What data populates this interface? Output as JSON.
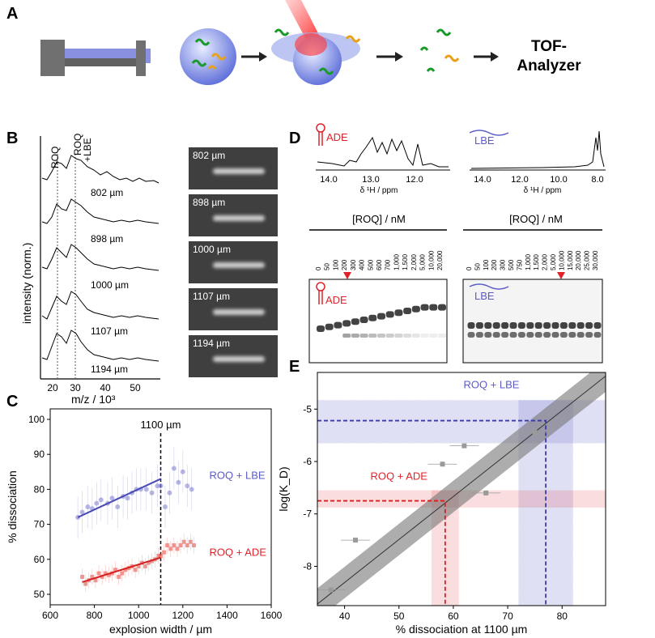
{
  "panels": {
    "a": "A",
    "b": "B",
    "c": "C",
    "d": "D",
    "e": "E"
  },
  "panel_a": {
    "analyzer_label_line1": "TOF-",
    "analyzer_label_line2": "Analyzer"
  },
  "panel_b": {
    "peak_labels": [
      "ROQ",
      "ROQ",
      "+LBE"
    ],
    "trace_labels": [
      "802 µm",
      "898 µm",
      "1000 µm",
      "1107 µm",
      "1194 µm"
    ],
    "ylabel": "intensity (norm.)",
    "xlabel": "m/z / 10³",
    "xticks": [
      "20",
      "30",
      "40",
      "50"
    ],
    "thumb_labels": [
      "802 µm",
      "898 µm",
      "1000 µm",
      "1107 µm",
      "1194 µm"
    ]
  },
  "panel_d": {
    "nmr_left_label": "ADE",
    "nmr_right_label": "LBE",
    "nmr_left_ticks": [
      "14.0",
      "13.0",
      "12.0"
    ],
    "nmr_right_ticks": [
      "14.0",
      "12.0",
      "10.0",
      "8.0"
    ],
    "nmr_xlabel_left": "δ ¹H / ppm",
    "nmr_xlabel_right": "δ ¹H / ppm",
    "gel_title_left": "[ROQ] / nM",
    "gel_title_right": "[ROQ] / nM",
    "gel_left_conc": [
      "0",
      "50",
      "100",
      "200",
      "300",
      "400",
      "500",
      "600",
      "700",
      "1,000",
      "1,500",
      "2,000",
      "5,000",
      "10,000",
      "20,000"
    ],
    "gel_right_conc": [
      "0",
      "50",
      "100",
      "200",
      "300",
      "500",
      "750",
      "1,000",
      "1,500",
      "2,000",
      "5,000",
      "10,000",
      "15,000",
      "20,000",
      "25,000",
      "30,000"
    ],
    "gel_left_label": "ADE",
    "gel_right_label": "LBE",
    "colors": {
      "ade": "#e0232a",
      "lbe": "#5b5bc8"
    }
  },
  "chart_data": [
    {
      "type": "scatter",
      "panel": "C",
      "xlabel": "explosion width / µm",
      "ylabel": "% dissociation",
      "xlim": [
        600,
        1600
      ],
      "ylim": [
        47,
        103
      ],
      "xticks": [
        "600",
        "800",
        "1000",
        "1200",
        "1400",
        "1600"
      ],
      "yticks": [
        "50",
        "60",
        "70",
        "80",
        "90",
        "100"
      ],
      "annotation": "1100 µm",
      "vline_x": 1100,
      "series": [
        {
          "name": "ROQ + LBE",
          "color": "#7b7bd0",
          "x": [
            725,
            745,
            770,
            790,
            810,
            830,
            860,
            880,
            905,
            930,
            950,
            970,
            990,
            1010,
            1035,
            1060,
            1085,
            1100,
            1120,
            1140,
            1160,
            1180,
            1200,
            1220,
            1240
          ],
          "y": [
            72,
            73.5,
            75,
            74.5,
            76,
            77,
            76,
            77.5,
            75,
            78,
            77.5,
            79,
            80,
            80,
            80,
            79,
            81,
            81,
            75,
            79,
            86,
            82,
            85,
            81,
            80
          ],
          "fit": {
            "x": [
              725,
              1100
            ],
            "y": [
              72,
              83
            ]
          }
        },
        {
          "name": "ROQ + ADE",
          "color": "#e8554e",
          "x": [
            745,
            760,
            775,
            790,
            805,
            820,
            835,
            850,
            865,
            880,
            895,
            910,
            925,
            940,
            955,
            970,
            985,
            1000,
            1015,
            1030,
            1045,
            1060,
            1075,
            1090,
            1100,
            1115,
            1130,
            1145,
            1160,
            1175,
            1190,
            1205,
            1220,
            1235,
            1250
          ],
          "y": [
            55,
            53,
            54,
            55,
            54,
            56,
            55,
            56,
            55.5,
            56,
            57,
            55,
            56,
            57,
            57.5,
            58,
            57,
            58,
            59,
            58,
            59,
            59.5,
            60,
            61,
            61,
            62,
            64,
            63,
            64,
            63,
            64,
            65,
            64,
            65,
            64
          ],
          "fit": {
            "x": [
              745,
              1100
            ],
            "y": [
              53.5,
              60.5
            ]
          }
        }
      ]
    },
    {
      "type": "scatter",
      "panel": "E",
      "xlabel": "% dissociation at 1100 µm",
      "ylabel": "log(K_D)",
      "xlim": [
        35,
        88
      ],
      "ylim": [
        -8.75,
        -4.3
      ],
      "xticks": [
        "40",
        "50",
        "60",
        "70",
        "80"
      ],
      "yticks": [
        "-5",
        "-6",
        "-7",
        "-8"
      ],
      "points": {
        "x": [
          37.5,
          42,
          62,
          58,
          66,
          75
        ],
        "y": [
          -8.45,
          -7.5,
          -5.7,
          -6.05,
          -6.6,
          -5.45
        ]
      },
      "fit": {
        "x": [
          35,
          88
        ],
        "y": [
          -8.72,
          -4.37
        ]
      },
      "lbe": {
        "label": "ROQ + LBE",
        "x": 77,
        "y": -5.22,
        "xrange": [
          72,
          82
        ],
        "yrange": [
          -5.65,
          -4.83
        ],
        "color": "#5b5bc8"
      },
      "ade": {
        "label": "ROQ + ADE",
        "x": 58.5,
        "y": -6.75,
        "xrange": [
          56,
          61
        ],
        "yrange": [
          -6.88,
          -6.55
        ],
        "color": "#e0232a"
      }
    }
  ]
}
